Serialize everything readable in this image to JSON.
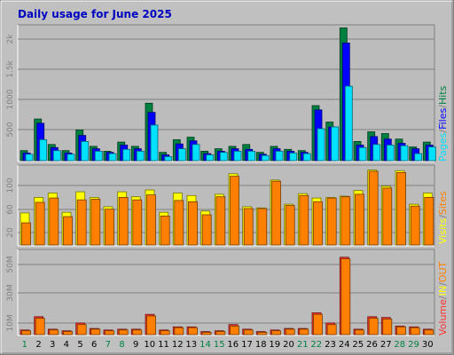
{
  "title": "Daily usage for June 2025",
  "colors": {
    "background": "#c0c0c0",
    "plot": "#bcbcbc",
    "hits": "#008040",
    "files": "#0000ff",
    "pages": "#00e0ff",
    "visits": "#ffff00",
    "sites": "#ff8000",
    "volume": "#ff3030",
    "title": "#0000c0",
    "weekend_day": "#008040",
    "weekday_day": "#000000"
  },
  "legends": {
    "top": [
      "Hits",
      "Files",
      "Pages"
    ],
    "top_separator": "/",
    "middle": [
      "Sites",
      "Visits"
    ],
    "middle_separator": "/",
    "bottom": [
      "Volume",
      "IN",
      "OUT"
    ],
    "bottom_separator": "/"
  },
  "weekend_days": [
    1,
    7,
    8,
    14,
    15,
    21,
    22,
    28,
    29
  ],
  "chart_data": [
    {
      "type": "bar",
      "panel": "hits-files-pages",
      "categories": [
        1,
        2,
        3,
        4,
        5,
        6,
        7,
        8,
        9,
        10,
        11,
        12,
        13,
        14,
        15,
        16,
        17,
        18,
        19,
        20,
        21,
        22,
        23,
        24,
        25,
        26,
        27,
        28,
        29,
        30
      ],
      "y_ticks": [
        "500",
        "1000",
        "1.5k",
        "2k"
      ],
      "ylim": [
        0,
        2250
      ],
      "series": [
        {
          "name": "Hits",
          "values": [
            180,
            700,
            280,
            180,
            520,
            250,
            170,
            320,
            250,
            960,
            150,
            360,
            400,
            170,
            210,
            250,
            280,
            150,
            250,
            200,
            180,
            920,
            650,
            2200,
            330,
            490,
            460,
            370,
            240,
            320
          ]
        },
        {
          "name": "Files",
          "values": [
            140,
            630,
            230,
            140,
            430,
            210,
            150,
            270,
            210,
            810,
            110,
            290,
            340,
            130,
            170,
            210,
            200,
            120,
            210,
            170,
            150,
            850,
            570,
            1950,
            270,
            410,
            370,
            300,
            210,
            270
          ]
        },
        {
          "name": "Pages",
          "values": [
            120,
            360,
            180,
            120,
            330,
            170,
            130,
            200,
            170,
            600,
            80,
            210,
            280,
            110,
            150,
            170,
            170,
            100,
            170,
            140,
            130,
            540,
            570,
            1240,
            230,
            280,
            270,
            260,
            130,
            240
          ]
        }
      ]
    },
    {
      "type": "bar",
      "panel": "visits-sites",
      "categories": [
        1,
        2,
        3,
        4,
        5,
        6,
        7,
        8,
        9,
        10,
        11,
        12,
        13,
        14,
        15,
        16,
        17,
        18,
        19,
        20,
        21,
        22,
        23,
        24,
        25,
        26,
        27,
        28,
        29,
        30
      ],
      "y_ticks": [
        "20",
        "60",
        "100"
      ],
      "ylim": [
        0,
        130
      ],
      "series": [
        {
          "name": "Visits",
          "values": [
            53,
            78,
            85,
            54,
            87,
            78,
            63,
            87,
            79,
            90,
            54,
            85,
            81,
            56,
            83,
            116,
            63,
            61,
            106,
            67,
            84,
            77,
            78,
            80,
            89,
            122,
            96,
            121,
            67,
            85
          ]
        },
        {
          "name": "Sites",
          "values": [
            37,
            70,
            77,
            47,
            74,
            75,
            59,
            78,
            74,
            82,
            48,
            73,
            71,
            50,
            79,
            112,
            60,
            60,
            104,
            65,
            81,
            71,
            77,
            79,
            83,
            120,
            93,
            118,
            64,
            78
          ]
        }
      ]
    },
    {
      "type": "bar",
      "panel": "volume",
      "categories": [
        1,
        2,
        3,
        4,
        5,
        6,
        7,
        8,
        9,
        10,
        11,
        12,
        13,
        14,
        15,
        16,
        17,
        18,
        19,
        20,
        21,
        22,
        23,
        24,
        25,
        26,
        27,
        28,
        29,
        30
      ],
      "y_ticks": [
        "10M",
        "30M",
        "50M"
      ],
      "ylim": [
        0,
        55
      ],
      "series": [
        {
          "name": "Volume",
          "values": [
            3.5,
            12,
            4,
            3,
            8,
            4.5,
            3.5,
            4,
            4,
            13.5,
            3.5,
            5.5,
            5.5,
            2.5,
            3,
            7,
            4,
            2.5,
            3.5,
            4.5,
            4.5,
            14.5,
            8,
            50,
            4,
            12,
            11.5,
            6,
            5.5,
            4
          ]
        },
        {
          "name": "IN",
          "values": [
            3.0,
            11,
            3.5,
            2.5,
            7,
            4,
            3,
            3.5,
            3.5,
            12.5,
            3,
            5,
            5,
            2,
            2.5,
            6,
            3.5,
            2,
            3,
            4,
            4,
            13.5,
            7,
            49,
            3.5,
            11,
            10.5,
            5.5,
            5,
            3.5
          ]
        }
      ]
    }
  ]
}
